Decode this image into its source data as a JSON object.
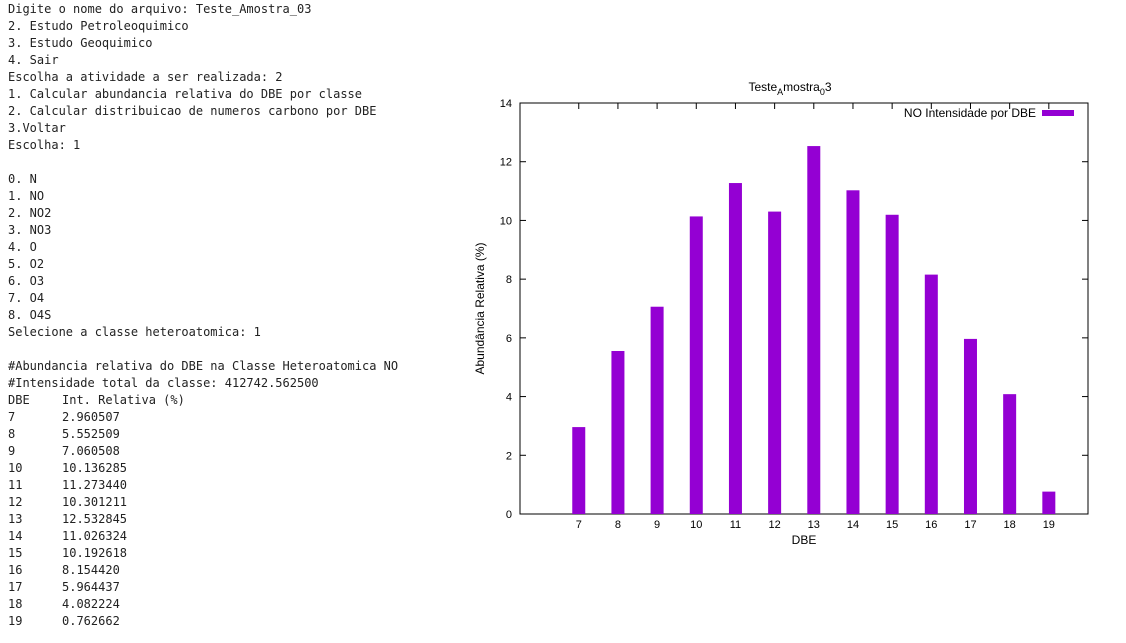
{
  "terminal": {
    "lines_top": [
      "Digite o nome do arquivo: Teste_Amostra_03",
      "2. Estudo Petroleoquimico",
      "3. Estudo Geoquimico",
      "4. Sair",
      "Escolha a atividade a ser realizada: 2",
      "1. Calcular abundancia relativa do DBE por classe",
      "2. Calcular distribuicao de numeros carbono por DBE",
      "3.Voltar",
      "Escolha: 1"
    ],
    "class_lines": [
      "0. N",
      "1. NO",
      "2. NO2",
      "3. NO3",
      "4. O",
      "5. O2",
      "6. O3",
      "7. O4",
      "8. O4S",
      "Selecione a classe heteroatomica: 1"
    ],
    "result_lines": [
      "#Abundancia relativa do DBE na Classe Heteroatomica NO",
      "#Intensidade total da classe: 412742.562500"
    ],
    "table": {
      "headers": [
        "DBE",
        "Int. Relativa (%)"
      ],
      "rows": [
        [
          "7",
          "2.960507"
        ],
        [
          "8",
          "5.552509"
        ],
        [
          "9",
          "7.060508"
        ],
        [
          "10",
          "10.136285"
        ],
        [
          "11",
          "11.273440"
        ],
        [
          "12",
          "10.301211"
        ],
        [
          "13",
          "12.532845"
        ],
        [
          "14",
          "11.026324"
        ],
        [
          "15",
          "10.192618"
        ],
        [
          "16",
          "8.154420"
        ],
        [
          "17",
          "5.964437"
        ],
        [
          "18",
          "4.082224"
        ],
        [
          "19",
          "0.762662"
        ]
      ]
    }
  },
  "chart_data": {
    "type": "bar",
    "title_base": "Teste",
    "title_sub1": "A",
    "title_mid": "mostra",
    "title_sub2": "0",
    "title_end": "3",
    "xlabel": "DBE",
    "ylabel": "Abundância Relativa (%)",
    "legend": "NO Intensidade por DBE",
    "legend_position": "top-right",
    "bar_color": "#9400d3",
    "categories": [
      "7",
      "8",
      "9",
      "10",
      "11",
      "12",
      "13",
      "14",
      "15",
      "16",
      "17",
      "18",
      "19"
    ],
    "x": [
      7,
      8,
      9,
      10,
      11,
      12,
      13,
      14,
      15,
      16,
      17,
      18,
      19
    ],
    "values": [
      2.960507,
      5.552509,
      7.060508,
      10.136285,
      11.27344,
      10.301211,
      12.532845,
      11.026324,
      10.192618,
      8.15442,
      5.964437,
      4.082224,
      0.762662
    ],
    "xlim": [
      5.5,
      20
    ],
    "ylim": [
      0,
      14
    ],
    "yticks": [
      0,
      2,
      4,
      6,
      8,
      10,
      12,
      14
    ],
    "grid": false
  }
}
